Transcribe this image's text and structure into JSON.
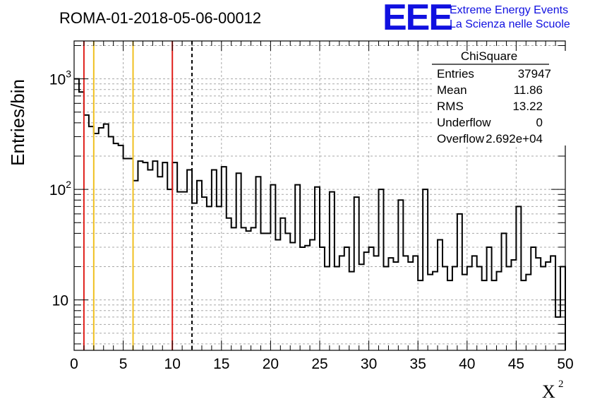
{
  "chart_data": {
    "type": "bar",
    "title": "ROMA-01-2018-05-06-00012",
    "xlabel": "X",
    "xlabel_superscript": "2",
    "ylabel": "Entries/bin",
    "xlim": [
      0,
      50
    ],
    "ylim": [
      3.5,
      2200
    ],
    "yscale": "log",
    "grid": true,
    "bin_width": 0.5,
    "x_ticks": [
      0,
      5,
      10,
      15,
      20,
      25,
      30,
      35,
      40,
      45,
      50
    ],
    "x_tick_labels": [
      "0",
      "5",
      "10",
      "15",
      "20",
      "25",
      "30",
      "35",
      "40",
      "45",
      "50"
    ],
    "y_ticks": [
      10,
      100,
      1000
    ],
    "y_tick_labels": [
      "10",
      "10",
      "10"
    ],
    "y_tick_exponents": [
      "",
      "2",
      "3"
    ],
    "values": [
      1000,
      760,
      470,
      370,
      320,
      360,
      390,
      300,
      260,
      250,
      190,
      190,
      120,
      180,
      175,
      150,
      180,
      130,
      175,
      100,
      175,
      95,
      95,
      150,
      75,
      120,
      85,
      70,
      150,
      70,
      160,
      55,
      45,
      140,
      45,
      42,
      45,
      130,
      40,
      40,
      110,
      35,
      55,
      40,
      33,
      110,
      30,
      31,
      35,
      105,
      30,
      20,
      95,
      20,
      25,
      30,
      18,
      85,
      21,
      27,
      30,
      25,
      100,
      20,
      24,
      22,
      80,
      25,
      22,
      25,
      15,
      100,
      17,
      18,
      35,
      20,
      15,
      20,
      60,
      17,
      20,
      25,
      20,
      15,
      30,
      15,
      18,
      40,
      20,
      23,
      70,
      15,
      17,
      30,
      24,
      20,
      22,
      25,
      7,
      20
    ],
    "vertical_lines": [
      {
        "x": 1,
        "color": "#e0201c",
        "style": "solid"
      },
      {
        "x": 2,
        "color": "#f0c020",
        "style": "solid"
      },
      {
        "x": 6,
        "color": "#f0c020",
        "style": "solid"
      },
      {
        "x": 10,
        "color": "#e0201c",
        "style": "solid"
      },
      {
        "x": 12,
        "color": "#000000",
        "style": "dashed"
      }
    ],
    "stats_box": {
      "title": "ChiSquare",
      "rows": [
        {
          "label": "Entries",
          "value": "37947"
        },
        {
          "label": "Mean",
          "value": "11.86"
        },
        {
          "label": "RMS",
          "value": "13.22"
        },
        {
          "label": "Underflow",
          "value": "0"
        },
        {
          "label": "Overflow",
          "value": "2.692e+04"
        }
      ]
    }
  },
  "logo": {
    "mark": "EEE",
    "line1": "Extreme Energy Events",
    "line2": "La Scienza nelle Scuole",
    "color": "#1010e0"
  }
}
